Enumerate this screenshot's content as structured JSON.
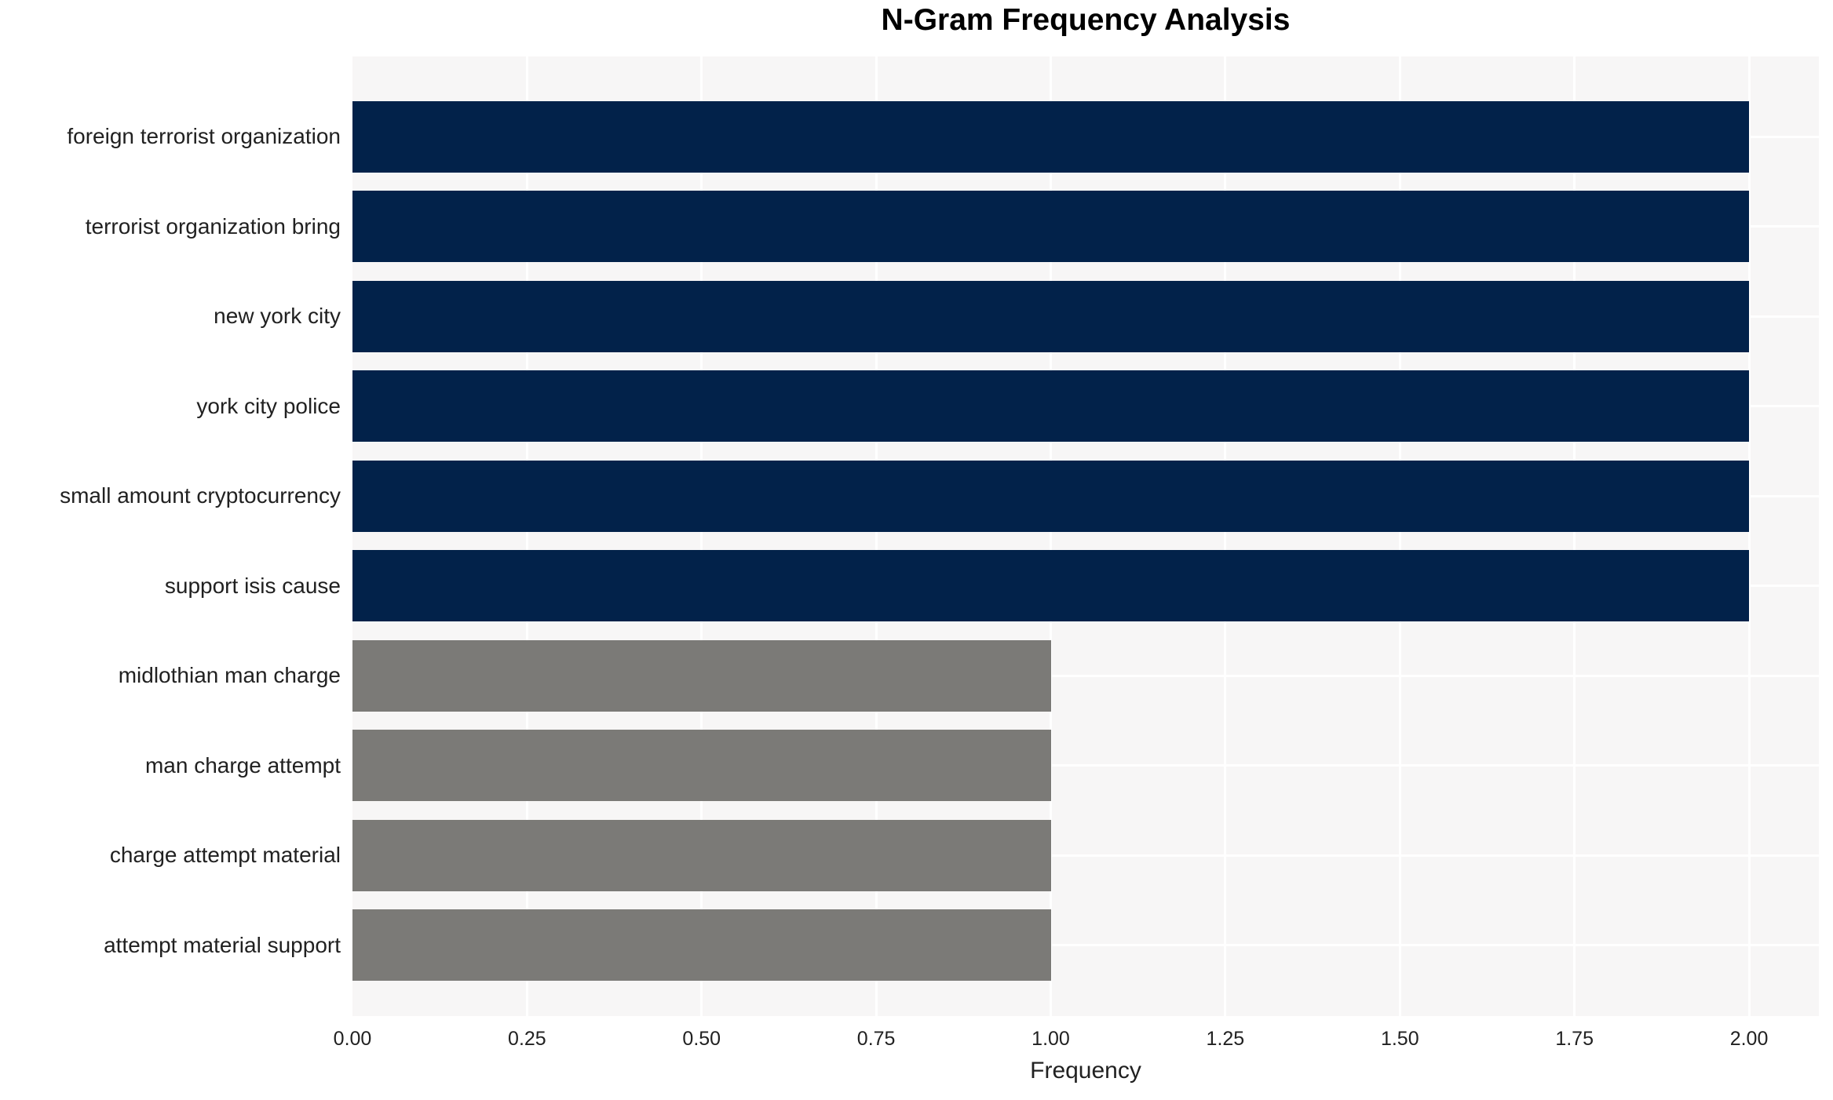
{
  "title": "N-Gram Frequency Analysis",
  "chart_data": {
    "type": "bar",
    "orientation": "horizontal",
    "title": "N-Gram Frequency Analysis",
    "xlabel": "Frequency",
    "ylabel": "",
    "categories": [
      "foreign terrorist organization",
      "terrorist organization bring",
      "new york city",
      "york city police",
      "small amount cryptocurrency",
      "support isis cause",
      "midlothian man charge",
      "man charge attempt",
      "charge attempt material",
      "attempt material support"
    ],
    "values": [
      2,
      2,
      2,
      2,
      2,
      2,
      1,
      1,
      1,
      1
    ],
    "bar_colors": [
      "#02224a",
      "#02224a",
      "#02224a",
      "#02224a",
      "#02224a",
      "#02224a",
      "#7b7a77",
      "#7b7a77",
      "#7b7a77",
      "#7b7a77"
    ],
    "xticks": [
      "0.00",
      "0.25",
      "0.50",
      "0.75",
      "1.00",
      "1.25",
      "1.50",
      "1.75",
      "2.00"
    ],
    "xtick_values": [
      0,
      0.25,
      0.5,
      0.75,
      1.0,
      1.25,
      1.5,
      1.75,
      2.0
    ],
    "xlim": [
      0,
      2.1
    ],
    "grid": true,
    "legend": "none",
    "colors": {
      "bar_high": "#02224a",
      "bar_low": "#7b7a77",
      "panel_background": "#f7f6f6",
      "gridline": "#ffffff",
      "text": "#212121",
      "title_text": "#000000"
    }
  }
}
